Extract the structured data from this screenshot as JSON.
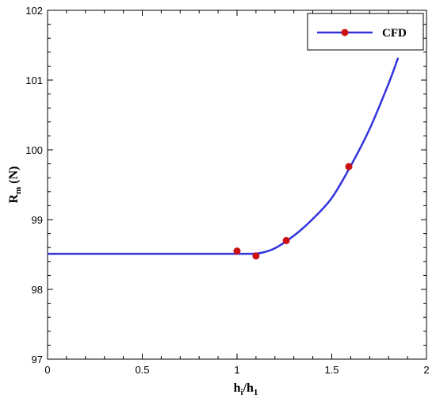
{
  "chart_data": {
    "type": "line",
    "xlabel": {
      "main": "h",
      "sub_i": "i",
      "slash": "/h",
      "sub_1": "1"
    },
    "ylabel": {
      "main": "R",
      "sub": "m",
      "rest": " (N)"
    },
    "xlim": [
      0,
      2
    ],
    "ylim": [
      97,
      102
    ],
    "x_ticks": [
      0,
      0.5,
      1,
      1.5,
      2
    ],
    "x_tick_labels": [
      "0",
      "0.5",
      "1",
      "1.5",
      "2"
    ],
    "y_ticks": [
      97,
      98,
      99,
      100,
      101,
      102
    ],
    "y_tick_labels": [
      "97",
      "98",
      "99",
      "100",
      "101",
      "102"
    ],
    "grid": false,
    "legend_position": "top-right",
    "series": [
      {
        "name": "CFD",
        "color": "#3333dd",
        "marker_color": "#cc1111",
        "curve": [
          {
            "x": 0.0,
            "y": 98.51
          },
          {
            "x": 0.5,
            "y": 98.51
          },
          {
            "x": 0.95,
            "y": 98.51
          },
          {
            "x": 1.05,
            "y": 98.51
          },
          {
            "x": 1.12,
            "y": 98.52
          },
          {
            "x": 1.2,
            "y": 98.59
          },
          {
            "x": 1.3,
            "y": 98.77
          },
          {
            "x": 1.4,
            "y": 99.01
          },
          {
            "x": 1.5,
            "y": 99.31
          },
          {
            "x": 1.6,
            "y": 99.77
          },
          {
            "x": 1.7,
            "y": 100.3
          },
          {
            "x": 1.8,
            "y": 100.95
          },
          {
            "x": 1.85,
            "y": 101.32
          }
        ],
        "points": [
          {
            "x": 1.0,
            "y": 98.55
          },
          {
            "x": 1.1,
            "y": 98.48
          },
          {
            "x": 1.26,
            "y": 98.7
          },
          {
            "x": 1.59,
            "y": 99.76
          }
        ]
      }
    ]
  }
}
